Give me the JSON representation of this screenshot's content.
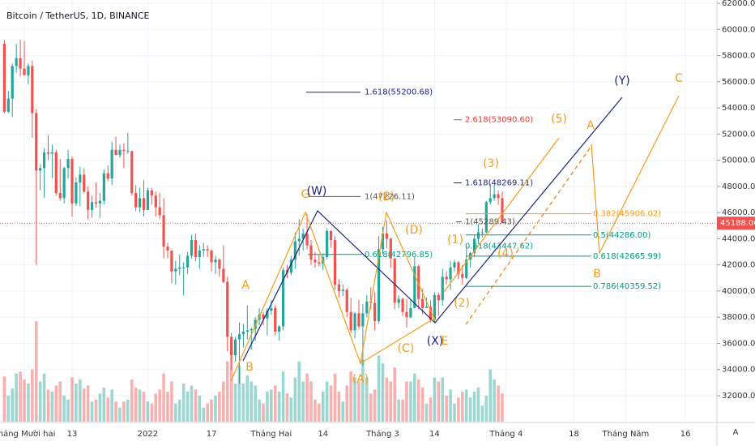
{
  "chart_data": {
    "type": "candlestick",
    "title": "Bitcoin / TetherUS, 1D, BINANCE",
    "up_color": "#26a69a",
    "down_color": "#ef5350",
    "xlim": [
      -1.1,
      178.9
    ],
    "xticks": [
      {
        "value": 5,
        "label": "Tháng Mười hai"
      },
      {
        "value": 17,
        "label": "13"
      },
      {
        "value": 36,
        "label": "2022"
      },
      {
        "value": 52,
        "label": "17"
      },
      {
        "value": 67,
        "label": "Tháng Hai"
      },
      {
        "value": 80,
        "label": "14"
      },
      {
        "value": 95,
        "label": "Tháng 3"
      },
      {
        "value": 108,
        "label": "14"
      },
      {
        "value": 126,
        "label": "Tháng 4"
      },
      {
        "value": 143,
        "label": "18"
      },
      {
        "value": 156,
        "label": "Tháng Năm"
      },
      {
        "value": 171,
        "label": "16"
      }
    ],
    "ylim": [
      62250,
      29900
    ],
    "yticks": [
      {
        "value": 62000,
        "label": "62000.00"
      },
      {
        "value": 60000,
        "label": "60000.00"
      },
      {
        "value": 58000,
        "label": "58000.00"
      },
      {
        "value": 56000,
        "label": "56000.00"
      },
      {
        "value": 54000,
        "label": "54000.00"
      },
      {
        "value": 52000,
        "label": "52000.00"
      },
      {
        "value": 50000,
        "label": "50000.00"
      },
      {
        "value": 48000,
        "label": "48000.00"
      },
      {
        "value": 46000,
        "label": "46000.00"
      },
      {
        "value": 44000,
        "label": "44000.00"
      },
      {
        "value": 42000,
        "label": "42000.00"
      },
      {
        "value": 40000,
        "label": "40000.00"
      },
      {
        "value": 38000,
        "label": "38000.00"
      },
      {
        "value": 36000,
        "label": "36000.00"
      },
      {
        "value": 34000,
        "label": "34000.00"
      },
      {
        "value": 32000,
        "label": "32000.00"
      }
    ],
    "open": [
      58900,
      53700,
      54700,
      57200,
      57800,
      57000,
      56500,
      57200,
      53600,
      49200,
      49400,
      50600,
      50500,
      50600,
      47500,
      47100,
      49400,
      50100,
      46700,
      48300,
      48900,
      47600,
      46200,
      46800,
      46700,
      46900,
      49000,
      48600,
      50800,
      50400,
      50800,
      50700,
      50700,
      47500,
      46400,
      47100,
      46200,
      47700,
      47300,
      46400,
      45800,
      43400,
      43100,
      41500,
      41700,
      41800,
      41800,
      42700,
      43900,
      42600,
      43100,
      43200,
      43100,
      42200,
      42400,
      41700,
      40700,
      36500,
      35100,
      36300,
      36700,
      36900,
      37000,
      37100,
      37800,
      38200,
      37900,
      38500,
      38700,
      36900,
      37300,
      41600,
      41400,
      42400,
      43800,
      44000,
      44400,
      43500,
      42400,
      42200,
      42100,
      42600,
      44600,
      43900,
      40500,
      40000,
      40100,
      38400,
      37000,
      38300,
      37300,
      38300,
      39200,
      39100,
      37700,
      43200,
      44400,
      44000,
      42500,
      39100,
      39400,
      38400,
      38000,
      38700,
      41900,
      39400,
      38700,
      38800,
      37800,
      39700,
      39300,
      41100,
      40900,
      41800,
      42200,
      41300,
      41000,
      42400,
      42900,
      44000,
      44500,
      44500,
      46800,
      47100,
      47400,
      47100
    ],
    "high": [
      59200,
      55300,
      57400,
      58900,
      59200,
      59100,
      57400,
      57600,
      53900,
      49700,
      50900,
      51900,
      51200,
      50800,
      50100,
      49500,
      50800,
      50300,
      48700,
      49500,
      49400,
      48000,
      47300,
      48300,
      47500,
      49300,
      49600,
      51400,
      51800,
      51200,
      51300,
      52100,
      50700,
      48100,
      47900,
      48500,
      47900,
      47900,
      47600,
      47500,
      47100,
      43700,
      43100,
      42300,
      42800,
      42200,
      43000,
      44300,
      44400,
      43500,
      43700,
      43500,
      43200,
      42700,
      42500,
      43500,
      41100,
      36800,
      36500,
      37600,
      37500,
      38900,
      37200,
      38000,
      38700,
      38400,
      38700,
      39300,
      38900,
      37400,
      41800,
      42000,
      42700,
      44500,
      45500,
      44800,
      45900,
      43900,
      43000,
      42800,
      42900,
      44800,
      44600,
      44200,
      40900,
      40500,
      40200,
      39500,
      38400,
      39300,
      39000,
      39700,
      40300,
      39900,
      44200,
      44900,
      45400,
      44100,
      42500,
      39700,
      39500,
      39400,
      39400,
      42600,
      42000,
      40200,
      39500,
      39300,
      39900,
      39900,
      41700,
      41500,
      42300,
      42400,
      42300,
      42000,
      43400,
      43000,
      44300,
      45100,
      44800,
      46900,
      48200,
      48100,
      47700,
      47600
    ],
    "low": [
      53600,
      53600,
      53300,
      56700,
      56400,
      56500,
      55800,
      51700,
      42000,
      47700,
      47100,
      50000,
      48600,
      47300,
      46900,
      46700,
      48600,
      45700,
      46500,
      46500,
      47500,
      45500,
      45600,
      46400,
      45600,
      46600,
      48400,
      48100,
      50400,
      50200,
      49400,
      50500,
      47300,
      46100,
      46000,
      45700,
      46200,
      46600,
      45700,
      45500,
      42500,
      42500,
      40600,
      40500,
      41200,
      39700,
      41300,
      42500,
      42300,
      41700,
      42600,
      42600,
      41500,
      41300,
      41100,
      40600,
      35400,
      34000,
      34600,
      32900,
      35700,
      36300,
      35500,
      36200,
      37400,
      37400,
      36600,
      38200,
      36600,
      36200,
      37000,
      41000,
      41200,
      41700,
      42700,
      43100,
      43200,
      42000,
      41800,
      41900,
      41600,
      42400,
      43300,
      40100,
      39500,
      39600,
      38000,
      36800,
      36400,
      37100,
      34300,
      38000,
      38600,
      37000,
      37500,
      42800,
      43300,
      41800,
      38600,
      38700,
      38100,
      37200,
      37900,
      38700,
      38600,
      38200,
      38700,
      37600,
      37600,
      38100,
      38900,
      40500,
      40100,
      41500,
      40900,
      40500,
      40900,
      41800,
      42600,
      43600,
      44100,
      44400,
      46600,
      46900,
      46600,
      45200
    ],
    "close": [
      53700,
      54700,
      57200,
      57800,
      57000,
      56500,
      57200,
      53600,
      49200,
      49400,
      50600,
      50500,
      50600,
      47500,
      47100,
      49400,
      50100,
      46700,
      48300,
      48900,
      47600,
      46200,
      46800,
      46700,
      46900,
      49000,
      48600,
      50800,
      50400,
      50800,
      50700,
      50700,
      47500,
      46400,
      47100,
      46200,
      47700,
      47300,
      46400,
      45800,
      43400,
      43100,
      41500,
      41700,
      41800,
      41800,
      42700,
      43900,
      42600,
      43100,
      43200,
      43100,
      42200,
      42400,
      41700,
      40700,
      36500,
      35100,
      36300,
      36700,
      36900,
      37000,
      37100,
      37800,
      38200,
      37900,
      38500,
      38700,
      36900,
      37300,
      41600,
      41400,
      42400,
      43800,
      44000,
      44400,
      43500,
      42400,
      42200,
      42100,
      42600,
      44600,
      43900,
      40500,
      40000,
      40100,
      38400,
      37000,
      38300,
      37300,
      38300,
      39200,
      39100,
      37700,
      43200,
      44400,
      44000,
      42500,
      39100,
      39400,
      38400,
      38000,
      38700,
      41900,
      39400,
      38700,
      38800,
      37800,
      39700,
      39300,
      41100,
      40900,
      41800,
      42200,
      41300,
      41000,
      42400,
      42900,
      44000,
      44500,
      44500,
      46800,
      47100,
      47400,
      47100,
      45188
    ],
    "vlim": [
      0,
      105000
    ],
    "volume": [
      45000,
      26000,
      33000,
      48000,
      50000,
      42000,
      38000,
      52000,
      100000,
      40000,
      48000,
      32000,
      30000,
      36000,
      40000,
      26000,
      22000,
      44000,
      38000,
      42000,
      33000,
      36000,
      20000,
      22000,
      28000,
      34000,
      24000,
      32000,
      20000,
      14000,
      20000,
      22000,
      42000,
      34000,
      32000,
      30000,
      20000,
      18000,
      28000,
      32000,
      48000,
      30000,
      40000,
      18000,
      22000,
      38000,
      30000,
      36000,
      32000,
      26000,
      14000,
      18000,
      22000,
      26000,
      30000,
      40000,
      60000,
      70000,
      38000,
      56000,
      38000,
      46000,
      40000,
      36000,
      22000,
      18000,
      30000,
      32000,
      36000,
      30000,
      50000,
      28000,
      24000,
      44000,
      60000,
      40000,
      48000,
      40000,
      22000,
      18000,
      30000,
      40000,
      36000,
      48000,
      30000,
      20000,
      36000,
      50000,
      44000,
      40000,
      62000,
      44000,
      28000,
      32000,
      66000,
      58000,
      44000,
      40000,
      54000,
      22000,
      22000,
      40000,
      40000,
      48000,
      42000,
      34000,
      18000,
      24000,
      44000,
      40000,
      44000,
      26000,
      32000,
      18000,
      24000,
      30000,
      32000,
      24000,
      30000,
      34000,
      16000,
      26000,
      52000,
      42000,
      36000,
      28000
    ],
    "last_price": {
      "value": 45188,
      "label": "45188.00"
    },
    "fib_levels": [
      {
        "label": "1.618(55200.68)",
        "value": 55200.68,
        "color": "#1a237e"
      },
      {
        "label": "2.618(53090.60)",
        "value": 53090.6,
        "color": "#e53935"
      },
      {
        "label": "1.618(48269.11)",
        "value": 48269.11,
        "color": "#1a237e"
      },
      {
        "label": "1(47226.11)",
        "value": 47226.11,
        "color": "#555555"
      },
      {
        "label": "0.382(45906.02)",
        "value": 45906.02,
        "color": "#f59b1c"
      },
      {
        "label": "1(45289.43)",
        "value": 45289.43,
        "color": "#555555"
      },
      {
        "label": "0.5(44286.00)",
        "value": 44286.0,
        "color": "#089981"
      },
      {
        "label": "0.618(43447.62)",
        "value": 43447.62,
        "color": "#089981"
      },
      {
        "label": "0.618(42796.85)",
        "value": 42796.85,
        "color": "#089981"
      },
      {
        "label": "0.618(42665.99)",
        "value": 42665.99,
        "color": "#089981"
      },
      {
        "label": "0.786(40359.52)",
        "value": 40359.52,
        "color": "#089981"
      }
    ],
    "wave_labels": [
      {
        "label": "(Y)",
        "color": "#1a237e"
      },
      {
        "label": "C",
        "color": "#f59b1c"
      },
      {
        "label": "A",
        "color": "#f59b1c"
      },
      {
        "label": "(5)",
        "color": "#f59b1c"
      },
      {
        "label": "(3)",
        "color": "#f59b1c"
      },
      {
        "label": "G",
        "color": "#f59b1c"
      },
      {
        "label": "(W)",
        "color": "#1a237e"
      },
      {
        "label": "(B)",
        "color": "#f59b1c"
      },
      {
        "label": "(D)",
        "color": "#f59b1c"
      },
      {
        "label": "(1)",
        "color": "#f59b1c"
      },
      {
        "label": "(4)",
        "color": "#f59b1c"
      },
      {
        "label": "B",
        "color": "#f59b1c"
      },
      {
        "label": "(2)",
        "color": "#f59b1c"
      },
      {
        "label": "A",
        "color": "#f59b1c"
      },
      {
        "label": "B",
        "color": "#f59b1c"
      },
      {
        "label": "(C)",
        "color": "#f59b1c"
      },
      {
        "label": "(X)",
        "color": "#1a237e"
      },
      {
        "label": "E",
        "color": "#f59b1c"
      },
      {
        "label": "(A)",
        "color": "#f59b1c"
      }
    ],
    "scale_mode_label": "A"
  }
}
